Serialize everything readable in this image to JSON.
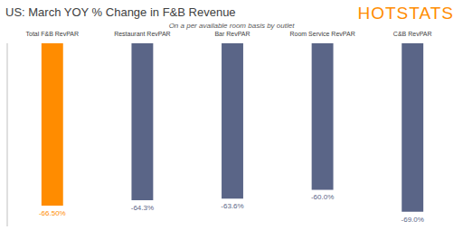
{
  "chart_data": {
    "type": "bar",
    "title": "US: March YOY % Change in F&B Revenue",
    "subtitle": "On a per available room basis by outlet",
    "annotations": [
      "HOTSTATS"
    ],
    "categories": [
      "Total F&B RevPAR",
      "Restaurant RevPAR",
      "Bar RevPAR",
      "Room Service RevPAR",
      "C&B RevPAR"
    ],
    "values": [
      -66.5,
      -64.3,
      -63.6,
      -60.0,
      -69.0
    ],
    "value_labels": [
      "-66.50%",
      "-64.3%",
      "-63.6%",
      "-60.0%",
      "-69.0%"
    ],
    "colors": [
      "#FF8C00",
      "#5A6587",
      "#5A6587",
      "#5A6587",
      "#5A6587"
    ],
    "ylim": [
      -75,
      0
    ],
    "grid": false,
    "data_labels": true,
    "tick_labels": "x"
  }
}
